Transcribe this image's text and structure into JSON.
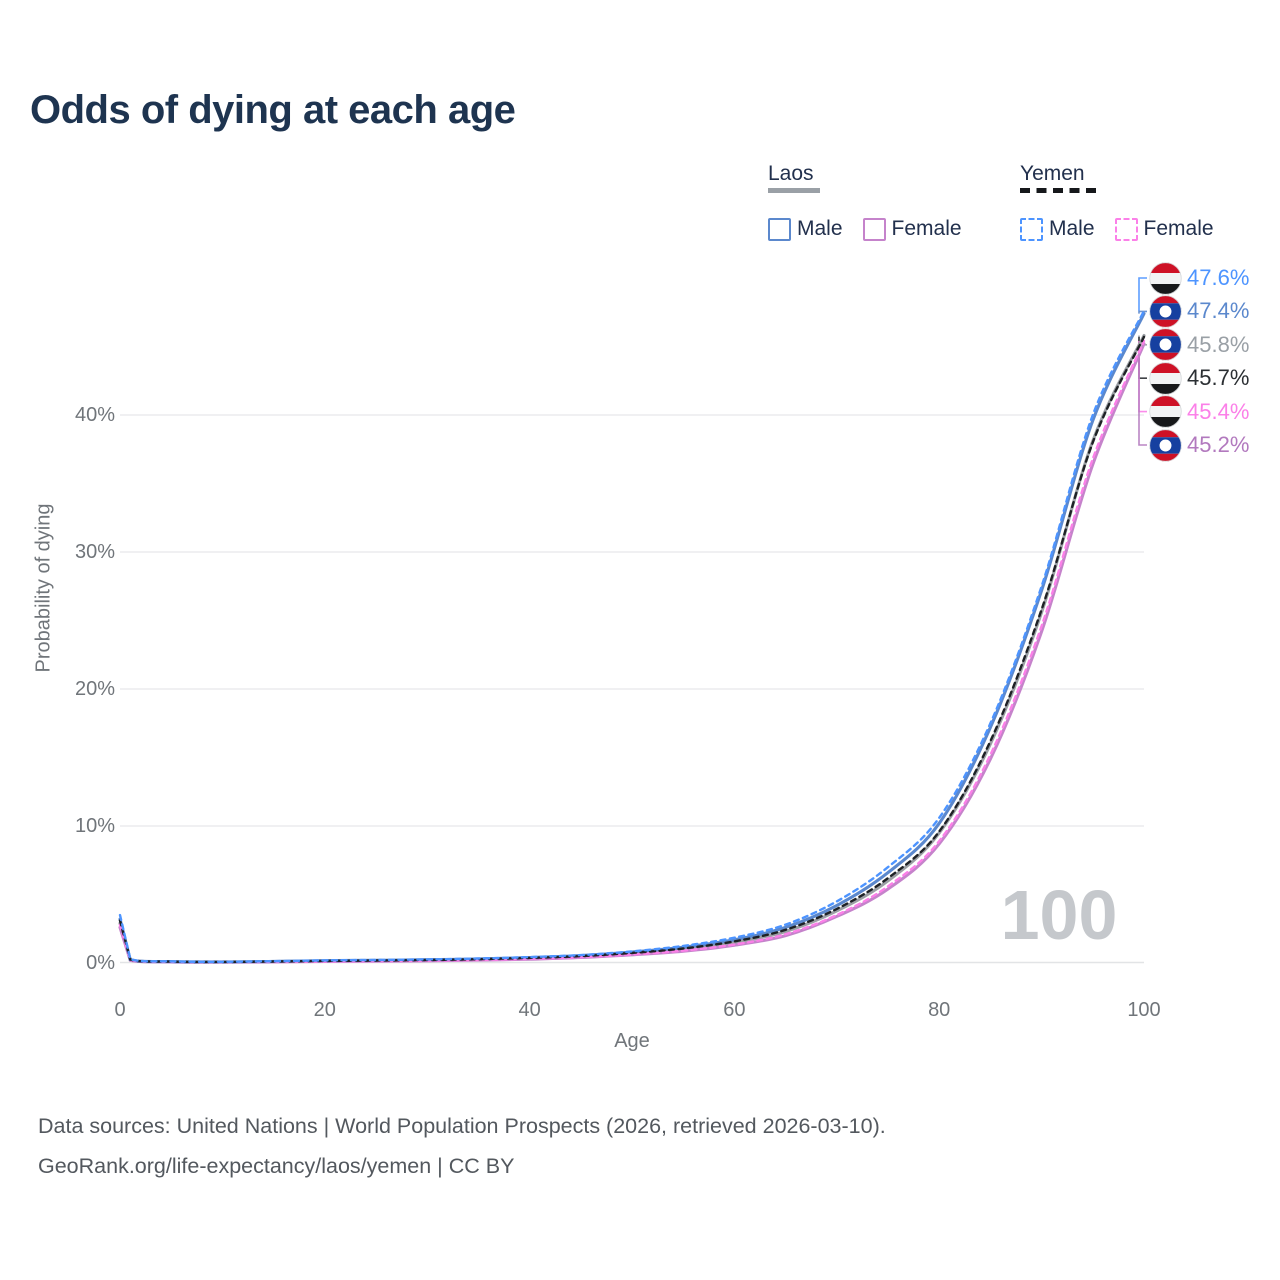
{
  "title": "Odds of dying at each age",
  "legend": {
    "groups": [
      {
        "label": "Laos",
        "line_style": "solid",
        "line_color": "#9aa0a6",
        "items": [
          {
            "label": "Male",
            "color": "#5b88cd",
            "dashed": false
          },
          {
            "label": "Female",
            "color": "#c583cb",
            "dashed": false
          }
        ]
      },
      {
        "label": "Yemen",
        "line_style": "dashed",
        "line_color": "#16181b",
        "items": [
          {
            "label": "Male",
            "color": "#4d94ff",
            "dashed": true
          },
          {
            "label": "Female",
            "color": "#fb80e8",
            "dashed": true
          }
        ]
      }
    ]
  },
  "axes": {
    "y_title": "Probability of dying",
    "y_ticks": [
      "0%",
      "10%",
      "20%",
      "30%",
      "40%"
    ],
    "y_tick_values": [
      0,
      10,
      20,
      30,
      40
    ],
    "x_title": "Age",
    "x_ticks": [
      "0",
      "20",
      "40",
      "60",
      "80",
      "100"
    ],
    "x_tick_values": [
      0,
      20,
      40,
      60,
      80,
      100
    ]
  },
  "watermark": "100",
  "end_labels": [
    {
      "text": "47.6%",
      "value": 47.6,
      "flag": "yemen",
      "color": "#4d94ff",
      "series": "yemen_male"
    },
    {
      "text": "47.4%",
      "value": 47.4,
      "flag": "laos",
      "color": "#5b88cd",
      "series": "laos_male"
    },
    {
      "text": "45.8%",
      "value": 45.8,
      "flag": "laos",
      "color": "#9aa0a6",
      "series": "laos_all"
    },
    {
      "text": "45.7%",
      "value": 45.7,
      "flag": "yemen",
      "color": "#2b2f33",
      "series": "yemen_all"
    },
    {
      "text": "45.4%",
      "value": 45.4,
      "flag": "yemen",
      "color": "#fb80e8",
      "series": "yemen_female"
    },
    {
      "text": "45.2%",
      "value": 45.2,
      "flag": "laos",
      "color": "#b279be",
      "series": "laos_female"
    }
  ],
  "footer": {
    "line1": "Data sources: United Nations | World Population Prospects (2026, retrieved 2026-03-10).",
    "line2": "GeoRank.org/life-expectancy/laos/yemen | CC BY"
  },
  "chart_data": {
    "type": "line",
    "title": "Odds of dying at each age",
    "xlabel": "Age",
    "ylabel": "Probability of dying",
    "xlim": [
      0,
      100
    ],
    "ylim_pct": [
      0,
      40
    ],
    "grid": "horizontal-only",
    "legend_position": "top-right",
    "x": [
      0,
      1,
      5,
      10,
      15,
      20,
      25,
      30,
      35,
      40,
      45,
      50,
      55,
      60,
      65,
      70,
      75,
      80,
      85,
      90,
      95,
      100
    ],
    "series": [
      {
        "name": "laos_all",
        "country": "Laos",
        "sex": "Both",
        "color": "#9b9fa4",
        "dashed": false,
        "values_pct": [
          2.9,
          0.22,
          0.09,
          0.07,
          0.1,
          0.14,
          0.17,
          0.2,
          0.26,
          0.35,
          0.48,
          0.7,
          1.0,
          1.5,
          2.3,
          3.8,
          6.0,
          9.5,
          16.0,
          25.6,
          38.1,
          45.8
        ]
      },
      {
        "name": "laos_female",
        "country": "Laos",
        "sex": "Female",
        "color": "#c583cb",
        "dashed": false,
        "values_pct": [
          2.6,
          0.2,
          0.08,
          0.06,
          0.08,
          0.11,
          0.13,
          0.16,
          0.21,
          0.28,
          0.4,
          0.6,
          0.86,
          1.3,
          2.0,
          3.4,
          5.4,
          8.7,
          14.9,
          24.2,
          36.4,
          45.2
        ]
      },
      {
        "name": "laos_male",
        "country": "Laos",
        "sex": "Male",
        "color": "#5b88cd",
        "dashed": false,
        "values_pct": [
          3.2,
          0.25,
          0.1,
          0.08,
          0.12,
          0.17,
          0.2,
          0.24,
          0.3,
          0.4,
          0.55,
          0.8,
          1.15,
          1.7,
          2.6,
          4.2,
          6.6,
          10.2,
          17.2,
          27.2,
          39.6,
          47.4
        ]
      },
      {
        "name": "yemen_female",
        "country": "Yemen",
        "sex": "Female",
        "color": "#fb80e8",
        "dashed": true,
        "values_pct": [
          2.8,
          0.22,
          0.09,
          0.07,
          0.09,
          0.12,
          0.14,
          0.17,
          0.22,
          0.3,
          0.42,
          0.62,
          0.9,
          1.35,
          2.1,
          3.5,
          5.6,
          8.9,
          15.2,
          24.6,
          36.8,
          45.4
        ]
      },
      {
        "name": "yemen_all",
        "country": "Yemen",
        "sex": "Both",
        "color": "#1e2125",
        "dashed": true,
        "values_pct": [
          3.1,
          0.26,
          0.1,
          0.08,
          0.11,
          0.15,
          0.18,
          0.22,
          0.28,
          0.37,
          0.5,
          0.74,
          1.06,
          1.58,
          2.42,
          3.95,
          6.2,
          9.6,
          16.2,
          25.8,
          38.0,
          45.7
        ]
      },
      {
        "name": "yemen_male",
        "country": "Yemen",
        "sex": "Male",
        "color": "#4d94ff",
        "dashed": true,
        "values_pct": [
          3.5,
          0.3,
          0.12,
          0.09,
          0.13,
          0.19,
          0.22,
          0.26,
          0.33,
          0.43,
          0.58,
          0.85,
          1.25,
          1.85,
          2.8,
          4.5,
          7.0,
          10.6,
          17.5,
          27.5,
          40.0,
          47.6
        ]
      }
    ]
  }
}
